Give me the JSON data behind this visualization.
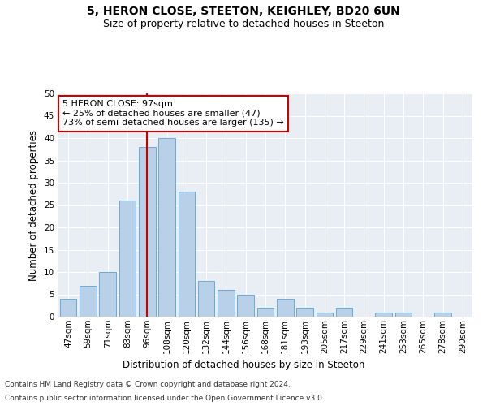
{
  "title": "5, HERON CLOSE, STEETON, KEIGHLEY, BD20 6UN",
  "subtitle": "Size of property relative to detached houses in Steeton",
  "xlabel": "Distribution of detached houses by size in Steeton",
  "ylabel": "Number of detached properties",
  "categories": [
    "47sqm",
    "59sqm",
    "71sqm",
    "83sqm",
    "96sqm",
    "108sqm",
    "120sqm",
    "132sqm",
    "144sqm",
    "156sqm",
    "168sqm",
    "181sqm",
    "193sqm",
    "205sqm",
    "217sqm",
    "229sqm",
    "241sqm",
    "253sqm",
    "265sqm",
    "278sqm",
    "290sqm"
  ],
  "values": [
    4,
    7,
    10,
    26,
    38,
    40,
    28,
    8,
    6,
    5,
    2,
    4,
    2,
    1,
    2,
    0,
    1,
    1,
    0,
    1,
    0
  ],
  "bar_color": "#b8d0e8",
  "bar_edge_color": "#6aaad4",
  "vline_x_index": 4,
  "vline_color": "#cc0000",
  "annotation_text": "5 HERON CLOSE: 97sqm\n← 25% of detached houses are smaller (47)\n73% of semi-detached houses are larger (135) →",
  "annotation_box_facecolor": "white",
  "annotation_box_edgecolor": "#cc0000",
  "ylim": [
    0,
    50
  ],
  "yticks": [
    0,
    5,
    10,
    15,
    20,
    25,
    30,
    35,
    40,
    45,
    50
  ],
  "grid_color": "#ffffff",
  "background_color": "#e8eef4",
  "footer_line1": "Contains HM Land Registry data © Crown copyright and database right 2024.",
  "footer_line2": "Contains public sector information licensed under the Open Government Licence v3.0.",
  "title_fontsize": 10,
  "subtitle_fontsize": 9,
  "xlabel_fontsize": 8.5,
  "ylabel_fontsize": 8.5,
  "tick_fontsize": 7.5,
  "annotation_fontsize": 8,
  "footer_fontsize": 6.5
}
